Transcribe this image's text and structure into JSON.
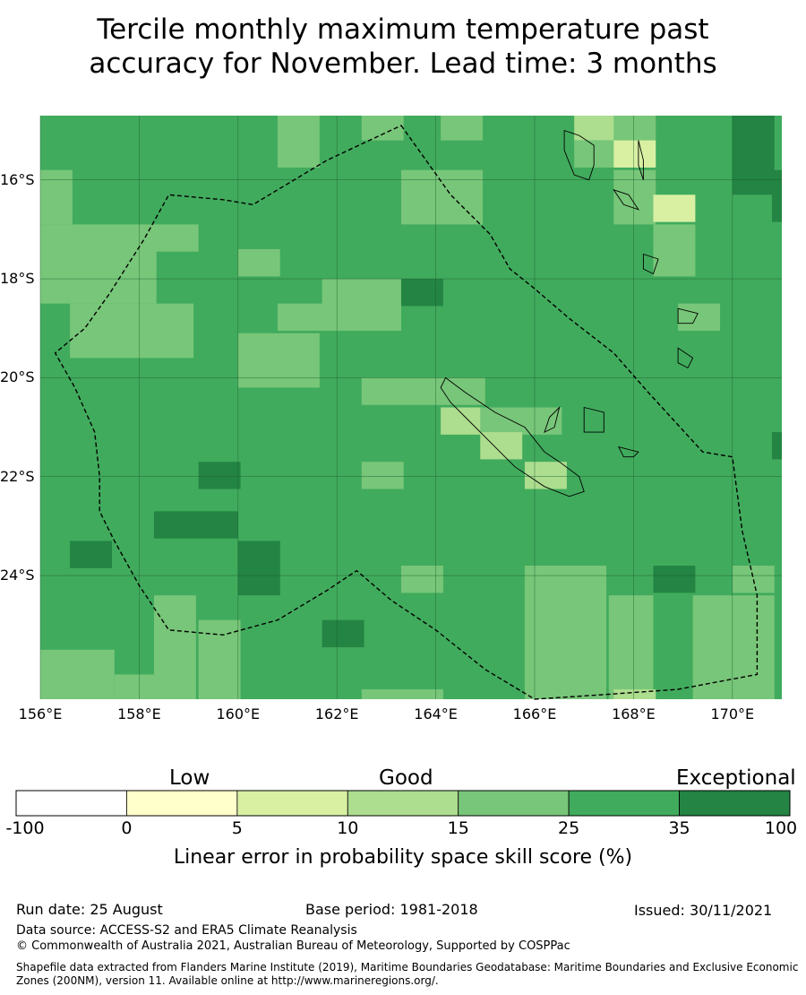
{
  "title_line1": "Tercile monthly maximum temperature past",
  "title_line2": "accuracy for November. Lead time: 3 months",
  "map": {
    "lon_range": [
      156,
      171
    ],
    "lat_range": [
      -26.5,
      -14.7
    ],
    "grid": true,
    "lon_ticks": [
      {
        "value": 156,
        "label": "156°E"
      },
      {
        "value": 158,
        "label": "158°E"
      },
      {
        "value": 160,
        "label": "160°E"
      },
      {
        "value": 162,
        "label": "162°E"
      },
      {
        "value": 164,
        "label": "164°E"
      },
      {
        "value": 166,
        "label": "166°E"
      },
      {
        "value": 168,
        "label": "168°E"
      },
      {
        "value": 170,
        "label": "170°E"
      }
    ],
    "lat_ticks": [
      {
        "value": -16,
        "label": "16°S"
      },
      {
        "value": -18,
        "label": "18°S"
      },
      {
        "value": -20,
        "label": "20°S"
      },
      {
        "value": -22,
        "label": "22°S"
      },
      {
        "value": -24,
        "label": "24°S"
      }
    ],
    "default_class": 5,
    "cells": [
      {
        "lon": 160.8,
        "lat": -14.7,
        "w": 0.85,
        "h": 1.05,
        "c": 4
      },
      {
        "lon": 162.5,
        "lat": -14.7,
        "w": 0.85,
        "h": 0.5,
        "c": 4
      },
      {
        "lon": 164.1,
        "lat": -14.7,
        "w": 0.85,
        "h": 0.5,
        "c": 4
      },
      {
        "lon": 166.8,
        "lat": -14.7,
        "w": 0.85,
        "h": 0.5,
        "c": 3
      },
      {
        "lon": 167.6,
        "lat": -14.7,
        "w": 0.85,
        "h": 0.5,
        "c": 4
      },
      {
        "lon": 166.8,
        "lat": -15.2,
        "w": 0.85,
        "h": 0.55,
        "c": 4
      },
      {
        "lon": 167.6,
        "lat": -15.2,
        "w": 0.85,
        "h": 0.55,
        "c": 2
      },
      {
        "lon": 156.0,
        "lat": -15.8,
        "w": 0.65,
        "h": 1.1,
        "c": 4
      },
      {
        "lon": 163.3,
        "lat": -15.8,
        "w": 1.65,
        "h": 1.1,
        "c": 4
      },
      {
        "lon": 167.6,
        "lat": -15.8,
        "w": 0.85,
        "h": 1.1,
        "c": 4
      },
      {
        "lon": 168.4,
        "lat": -16.3,
        "w": 0.85,
        "h": 0.55,
        "c": 2
      },
      {
        "lon": 156.0,
        "lat": -16.9,
        "w": 3.2,
        "h": 0.55,
        "c": 4
      },
      {
        "lon": 156.0,
        "lat": -17.4,
        "w": 2.35,
        "h": 1.1,
        "c": 4
      },
      {
        "lon": 160.0,
        "lat": -17.4,
        "w": 0.85,
        "h": 0.55,
        "c": 4
      },
      {
        "lon": 168.4,
        "lat": -16.9,
        "w": 0.85,
        "h": 1.05,
        "c": 4
      },
      {
        "lon": 161.7,
        "lat": -18.0,
        "w": 1.65,
        "h": 0.55,
        "c": 4
      },
      {
        "lon": 163.3,
        "lat": -18.0,
        "w": 0.85,
        "h": 0.55,
        "c": 6
      },
      {
        "lon": 156.6,
        "lat": -18.5,
        "w": 2.5,
        "h": 1.1,
        "c": 4
      },
      {
        "lon": 160.8,
        "lat": -18.5,
        "w": 2.5,
        "h": 0.55,
        "c": 4
      },
      {
        "lon": 160.0,
        "lat": -19.1,
        "w": 1.65,
        "h": 1.1,
        "c": 4
      },
      {
        "lon": 168.9,
        "lat": -18.5,
        "w": 0.85,
        "h": 0.55,
        "c": 4
      },
      {
        "lon": 162.5,
        "lat": -20.0,
        "w": 2.5,
        "h": 0.55,
        "c": 4
      },
      {
        "lon": 164.1,
        "lat": -20.6,
        "w": 0.85,
        "h": 0.55,
        "c": 3
      },
      {
        "lon": 164.9,
        "lat": -20.6,
        "w": 1.65,
        "h": 0.55,
        "c": 4
      },
      {
        "lon": 164.9,
        "lat": -21.1,
        "w": 0.85,
        "h": 0.55,
        "c": 3
      },
      {
        "lon": 165.8,
        "lat": -21.7,
        "w": 0.85,
        "h": 0.55,
        "c": 3
      },
      {
        "lon": 162.5,
        "lat": -21.7,
        "w": 0.85,
        "h": 0.55,
        "c": 4
      },
      {
        "lon": 170.8,
        "lat": -21.1,
        "w": 0.2,
        "h": 0.55,
        "c": 6
      },
      {
        "lon": 170.8,
        "lat": -15.8,
        "w": 0.2,
        "h": 0.55,
        "c": 6
      },
      {
        "lon": 159.2,
        "lat": -21.7,
        "w": 0.85,
        "h": 0.55,
        "c": 6
      },
      {
        "lon": 158.3,
        "lat": -22.7,
        "w": 1.7,
        "h": 0.55,
        "c": 6
      },
      {
        "lon": 156.6,
        "lat": -23.3,
        "w": 0.85,
        "h": 0.55,
        "c": 6
      },
      {
        "lon": 160.0,
        "lat": -23.3,
        "w": 0.85,
        "h": 1.1,
        "c": 6
      },
      {
        "lon": 163.3,
        "lat": -23.8,
        "w": 0.85,
        "h": 0.55,
        "c": 4
      },
      {
        "lon": 165.8,
        "lat": -23.8,
        "w": 1.65,
        "h": 2.7,
        "c": 4
      },
      {
        "lon": 167.5,
        "lat": -24.4,
        "w": 0.9,
        "h": 2.1,
        "c": 4
      },
      {
        "lon": 168.4,
        "lat": -23.8,
        "w": 0.85,
        "h": 0.55,
        "c": 6
      },
      {
        "lon": 170.0,
        "lat": -23.8,
        "w": 0.85,
        "h": 0.55,
        "c": 4
      },
      {
        "lon": 169.2,
        "lat": -24.4,
        "w": 1.65,
        "h": 2.1,
        "c": 4
      },
      {
        "lon": 158.3,
        "lat": -24.4,
        "w": 0.85,
        "h": 2.1,
        "c": 4
      },
      {
        "lon": 159.2,
        "lat": -24.9,
        "w": 0.85,
        "h": 1.6,
        "c": 4
      },
      {
        "lon": 161.7,
        "lat": -24.9,
        "w": 0.85,
        "h": 0.55,
        "c": 6
      },
      {
        "lon": 156.0,
        "lat": -25.5,
        "w": 1.5,
        "h": 1.0,
        "c": 4
      },
      {
        "lon": 157.5,
        "lat": -26.0,
        "w": 0.8,
        "h": 0.5,
        "c": 4
      },
      {
        "lon": 162.5,
        "lat": -26.3,
        "w": 1.65,
        "h": 0.2,
        "c": 4
      },
      {
        "lon": 167.6,
        "lat": -26.3,
        "w": 0.85,
        "h": 0.2,
        "c": 3
      },
      {
        "lon": 170.0,
        "lat": -14.7,
        "w": 0.85,
        "h": 1.6,
        "c": 6
      },
      {
        "lon": 170.8,
        "lat": -16.3,
        "w": 0.2,
        "h": 0.55,
        "c": 6
      }
    ],
    "eez_boundary": [
      [
        163.3,
        -14.9
      ],
      [
        164.3,
        -16.3
      ],
      [
        165.1,
        -17.1
      ],
      [
        165.5,
        -17.8
      ],
      [
        166.0,
        -18.2
      ],
      [
        166.7,
        -18.8
      ],
      [
        167.6,
        -19.5
      ],
      [
        168.3,
        -20.3
      ],
      [
        169.4,
        -21.5
      ],
      [
        170.0,
        -21.6
      ],
      [
        170.2,
        -23.1
      ],
      [
        170.5,
        -24.4
      ],
      [
        170.5,
        -26.0
      ],
      [
        168.9,
        -26.3
      ],
      [
        167.5,
        -26.4
      ],
      [
        166.0,
        -26.5
      ],
      [
        165.0,
        -25.9
      ],
      [
        164.0,
        -25.1
      ],
      [
        163.1,
        -24.5
      ],
      [
        162.4,
        -23.9
      ],
      [
        161.8,
        -24.3
      ],
      [
        160.8,
        -24.9
      ],
      [
        159.7,
        -25.2
      ],
      [
        158.6,
        -25.1
      ],
      [
        158.0,
        -24.2
      ],
      [
        157.5,
        -23.3
      ],
      [
        157.2,
        -22.7
      ],
      [
        157.2,
        -22.0
      ],
      [
        157.1,
        -21.1
      ],
      [
        156.7,
        -20.2
      ],
      [
        156.3,
        -19.5
      ],
      [
        156.9,
        -19.0
      ],
      [
        157.4,
        -18.3
      ],
      [
        158.1,
        -17.2
      ],
      [
        158.6,
        -16.3
      ],
      [
        159.7,
        -16.4
      ],
      [
        160.3,
        -16.5
      ],
      [
        161.8,
        -15.6
      ]
    ],
    "islands": [
      [
        [
          164.2,
          -20.0
        ],
        [
          164.6,
          -20.3
        ],
        [
          165.2,
          -20.7
        ],
        [
          165.8,
          -21.0
        ],
        [
          166.2,
          -21.5
        ],
        [
          166.5,
          -21.7
        ],
        [
          166.9,
          -22.0
        ],
        [
          167.0,
          -22.3
        ],
        [
          166.7,
          -22.4
        ],
        [
          166.2,
          -22.2
        ],
        [
          165.6,
          -21.8
        ],
        [
          165.1,
          -21.3
        ],
        [
          164.6,
          -20.8
        ],
        [
          164.3,
          -20.5
        ],
        [
          164.1,
          -20.2
        ]
      ],
      [
        [
          166.9,
          -15.1
        ],
        [
          167.2,
          -15.3
        ],
        [
          167.2,
          -15.7
        ],
        [
          167.1,
          -16.0
        ],
        [
          166.8,
          -15.9
        ],
        [
          166.6,
          -15.4
        ],
        [
          166.6,
          -15.0
        ]
      ],
      [
        [
          168.1,
          -15.2
        ],
        [
          168.2,
          -15.6
        ],
        [
          168.2,
          -16.0
        ],
        [
          168.1,
          -15.7
        ]
      ],
      [
        [
          167.6,
          -16.2
        ],
        [
          167.9,
          -16.3
        ],
        [
          168.1,
          -16.6
        ],
        [
          167.8,
          -16.5
        ]
      ],
      [
        [
          168.2,
          -17.5
        ],
        [
          168.5,
          -17.6
        ],
        [
          168.4,
          -17.9
        ],
        [
          168.2,
          -17.8
        ]
      ],
      [
        [
          168.9,
          -18.6
        ],
        [
          169.3,
          -18.7
        ],
        [
          169.2,
          -18.9
        ],
        [
          168.9,
          -18.9
        ]
      ],
      [
        [
          168.9,
          -19.4
        ],
        [
          169.2,
          -19.6
        ],
        [
          169.1,
          -19.8
        ],
        [
          168.9,
          -19.7
        ]
      ],
      [
        [
          167.0,
          -20.6
        ],
        [
          167.4,
          -20.7
        ],
        [
          167.4,
          -21.1
        ],
        [
          167.0,
          -21.1
        ]
      ],
      [
        [
          167.7,
          -21.4
        ],
        [
          168.1,
          -21.5
        ],
        [
          168.0,
          -21.6
        ],
        [
          167.8,
          -21.6
        ]
      ],
      [
        [
          166.2,
          -21.1
        ],
        [
          166.4,
          -21.0
        ],
        [
          166.5,
          -20.6
        ],
        [
          166.3,
          -20.8
        ]
      ]
    ],
    "colors": {
      "grid": "#1b5e2e",
      "border": "#000000",
      "coast": "#000000"
    }
  },
  "colorbar": {
    "colors": [
      "#ffffff",
      "#ffffcc",
      "#d9f0a3",
      "#addd8e",
      "#78c679",
      "#41ab5d",
      "#238443"
    ],
    "ticks": [
      "-100",
      "0",
      "5",
      "10",
      "15",
      "25",
      "35",
      "100"
    ],
    "categories": {
      "low": "Low",
      "good": "Good",
      "exceptional": "Exceptional"
    },
    "title": "Linear error in probability space skill score (%)"
  },
  "footer": {
    "run_date": "Run date: 25 August",
    "base_period": "Base period: 1981-2018",
    "issued": "Issued: 30/11/2021",
    "data_source": "Data source: ACCESS-S2 and ERA5 Climate Reanalysis",
    "copyright": "© Commonwealth of Australia 2021, Australian Bureau of Meteorology, Supported by COSPPac",
    "shapefile": "Shapefile data extracted from Flanders Marine Institute (2019), Maritime Boundaries Geodatabase: Maritime Boundaries and Exclusive Economic Zones (200NM), version 11. Available online at http://www.marineregions.org/."
  }
}
